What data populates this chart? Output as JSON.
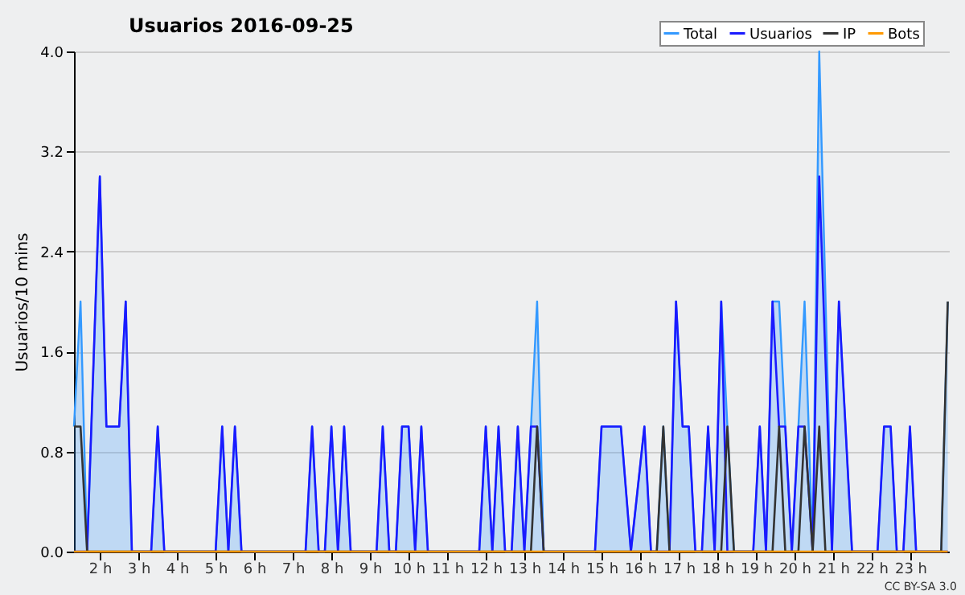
{
  "chart_data": {
    "type": "line",
    "title": "Usuarios  2016-09-25",
    "ylabel": "Usuarios/10 mins",
    "xlim": [
      1.33,
      24.0
    ],
    "xticks": [
      {
        "value": 2,
        "label": "2 h"
      },
      {
        "value": 3,
        "label": "3 h"
      },
      {
        "value": 4,
        "label": "4 h"
      },
      {
        "value": 5,
        "label": "5 h"
      },
      {
        "value": 6,
        "label": "6 h"
      },
      {
        "value": 7,
        "label": "7 h"
      },
      {
        "value": 8,
        "label": "8 h"
      },
      {
        "value": 9,
        "label": "9 h"
      },
      {
        "value": 10,
        "label": "10 h"
      },
      {
        "value": 11,
        "label": "11 h"
      },
      {
        "value": 12,
        "label": "12 h"
      },
      {
        "value": 13,
        "label": "13 h"
      },
      {
        "value": 14,
        "label": "14 h"
      },
      {
        "value": 15,
        "label": "15 h"
      },
      {
        "value": 16,
        "label": "16 h"
      },
      {
        "value": 17,
        "label": "17 h"
      },
      {
        "value": 18,
        "label": "18 h"
      },
      {
        "value": 19,
        "label": "19 h"
      },
      {
        "value": 20,
        "label": "20 h"
      },
      {
        "value": 21,
        "label": "21 h"
      },
      {
        "value": 22,
        "label": "22 h"
      },
      {
        "value": 23,
        "label": "23 h"
      }
    ],
    "ylim": [
      0,
      4.0
    ],
    "yticks": [
      {
        "value": 0,
        "label": "0.0"
      },
      {
        "value": 0.8,
        "label": "0.8"
      },
      {
        "value": 1.6,
        "label": "1.6"
      },
      {
        "value": 2.4,
        "label": "2.4"
      },
      {
        "value": 3.2,
        "label": "3.2"
      },
      {
        "value": 4.0,
        "label": "4.0"
      }
    ],
    "grid": "y",
    "legend": "top right",
    "line_style": "solid",
    "marker": "none",
    "annotations": [
      "CC BY-SA 3.0"
    ],
    "series": [
      {
        "name": "Total",
        "type": "area",
        "color": "#3399ff",
        "x": [
          1.33,
          1.5,
          1.67,
          2.0,
          2.17,
          2.5,
          2.67,
          2.83,
          3.33,
          3.5,
          3.67,
          5.0,
          5.17,
          5.33,
          5.5,
          5.67,
          7.33,
          7.5,
          7.67,
          7.83,
          8.0,
          8.17,
          8.33,
          8.5,
          9.17,
          9.33,
          9.5,
          9.67,
          9.83,
          10.0,
          10.17,
          10.33,
          10.5,
          11.83,
          12.0,
          12.17,
          12.33,
          12.5,
          12.67,
          12.83,
          13.0,
          13.17,
          13.33,
          13.5,
          14.83,
          15.0,
          15.5,
          15.76,
          16.11,
          16.28,
          16.43,
          16.6,
          16.76,
          16.93,
          17.1,
          17.26,
          17.43,
          17.6,
          17.76,
          17.93,
          18.1,
          18.26,
          18.43,
          18.93,
          19.1,
          19.26,
          19.43,
          19.6,
          19.76,
          19.93,
          20.1,
          20.26,
          20.47,
          20.64,
          20.97,
          21.15,
          21.49,
          22.15,
          22.32,
          22.49,
          22.65,
          22.82,
          22.99,
          23.15,
          23.8,
          23.97
        ],
        "values": [
          1,
          2,
          0,
          3,
          1,
          1,
          2,
          0,
          0,
          1,
          0,
          0,
          1,
          0,
          1,
          0,
          0,
          1,
          0,
          0,
          1,
          0,
          1,
          0,
          0,
          1,
          0,
          0,
          1,
          1,
          0,
          1,
          0,
          0,
          1,
          0,
          1,
          0,
          0,
          1,
          0,
          1,
          2,
          0,
          0,
          1,
          1,
          0,
          1,
          0,
          0,
          1,
          0,
          2,
          1,
          1,
          0,
          0,
          1,
          0,
          2,
          1,
          0,
          0,
          1,
          0,
          2,
          2,
          1,
          0,
          1,
          2,
          0,
          4,
          0,
          2,
          0,
          0,
          1,
          1,
          0,
          0,
          1,
          0,
          0,
          2
        ]
      },
      {
        "name": "Usuarios",
        "color": "#1a1aff",
        "x": [
          1.33,
          1.67,
          2.0,
          2.17,
          2.5,
          2.67,
          2.83,
          3.33,
          3.5,
          3.67,
          5.0,
          5.17,
          5.33,
          5.5,
          5.67,
          7.33,
          7.5,
          7.67,
          7.83,
          8.0,
          8.17,
          8.33,
          8.5,
          9.17,
          9.33,
          9.5,
          9.67,
          9.83,
          10.0,
          10.17,
          10.33,
          10.5,
          11.83,
          12.0,
          12.17,
          12.33,
          12.5,
          12.67,
          12.83,
          13.0,
          13.17,
          13.33,
          13.5,
          14.83,
          15.0,
          15.5,
          15.76,
          16.11,
          16.28,
          16.76,
          16.93,
          17.1,
          17.26,
          17.43,
          17.6,
          17.76,
          17.93,
          18.1,
          18.26,
          18.93,
          19.1,
          19.26,
          19.43,
          19.6,
          19.76,
          19.93,
          20.1,
          20.26,
          20.47,
          20.64,
          20.97,
          21.15,
          21.49,
          22.15,
          22.32,
          22.49,
          22.65,
          22.82,
          22.99,
          23.15,
          23.97
        ],
        "values": [
          0,
          0,
          3,
          1,
          1,
          2,
          0,
          0,
          1,
          0,
          0,
          1,
          0,
          1,
          0,
          0,
          1,
          0,
          0,
          1,
          0,
          1,
          0,
          0,
          1,
          0,
          0,
          1,
          1,
          0,
          1,
          0,
          0,
          1,
          0,
          1,
          0,
          0,
          1,
          0,
          1,
          1,
          0,
          0,
          1,
          1,
          0,
          1,
          0,
          0,
          2,
          1,
          1,
          0,
          0,
          1,
          0,
          2,
          0,
          0,
          1,
          0,
          2,
          1,
          1,
          0,
          1,
          1,
          0,
          3,
          0,
          2,
          0,
          0,
          1,
          1,
          0,
          0,
          1,
          0,
          0
        ]
      },
      {
        "name": "IP",
        "color": "#333333",
        "x": [
          1.33,
          1.5,
          1.67,
          13.17,
          13.33,
          13.5,
          16.43,
          16.6,
          16.76,
          18.1,
          18.26,
          18.43,
          19.43,
          19.6,
          19.76,
          20.1,
          20.26,
          20.47,
          20.64,
          20.8,
          23.8,
          23.97
        ],
        "values": [
          1,
          1,
          0,
          0,
          1,
          0,
          0,
          1,
          0,
          0,
          1,
          0,
          0,
          1,
          0,
          0,
          1,
          0,
          1,
          0,
          0,
          2
        ]
      },
      {
        "name": "Bots",
        "color": "#ff9900",
        "x": [
          1.33,
          23.97
        ],
        "values": [
          0,
          0
        ]
      }
    ]
  }
}
